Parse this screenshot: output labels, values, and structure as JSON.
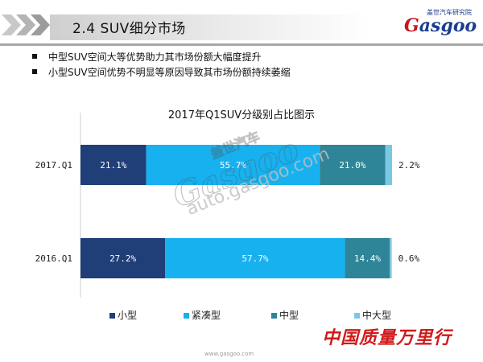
{
  "header": {
    "section_title": "2.4   SUV细分市场",
    "logo_cn": "盖世汽车研究院",
    "logo_en_first": "G",
    "logo_en_rest": "asgoo"
  },
  "bullets": [
    "中型SUV空间大等优势助力其市场份额大幅度提升",
    "小型SUV空间优势不明显等原因导致其市场份额持续萎缩"
  ],
  "chart_data": {
    "type": "bar",
    "orientation": "horizontal",
    "stacked": true,
    "title": "2017年Q1SUV分级别占比图示",
    "categories": [
      "2017.Q1",
      "2016.Q1"
    ],
    "series": [
      {
        "name": "小型",
        "values": [
          21.1,
          27.2
        ],
        "labels": [
          "21.1%",
          "27.2%"
        ],
        "color": "#203e78"
      },
      {
        "name": "紧凑型",
        "values": [
          55.7,
          57.7
        ],
        "labels": [
          "55.7%",
          "57.7%"
        ],
        "color": "#17b1ef"
      },
      {
        "name": "中型",
        "values": [
          21.0,
          14.4
        ],
        "labels": [
          "21.0%",
          "14.4%"
        ],
        "color": "#2e8597"
      },
      {
        "name": "中大型",
        "values": [
          2.2,
          0.6
        ],
        "labels": [
          "2.2%",
          "0.6%"
        ],
        "color": "#7bc8e4"
      }
    ],
    "xlim": [
      0,
      100
    ],
    "legend_position": "bottom",
    "grid": false
  },
  "watermark": {
    "cn": "盖世汽车",
    "en": "Gasgoo",
    "url": "auto.gasgoo.com"
  },
  "footer": {
    "url": "www.gasgoo.com",
    "slogan": "中国质量万里行"
  }
}
